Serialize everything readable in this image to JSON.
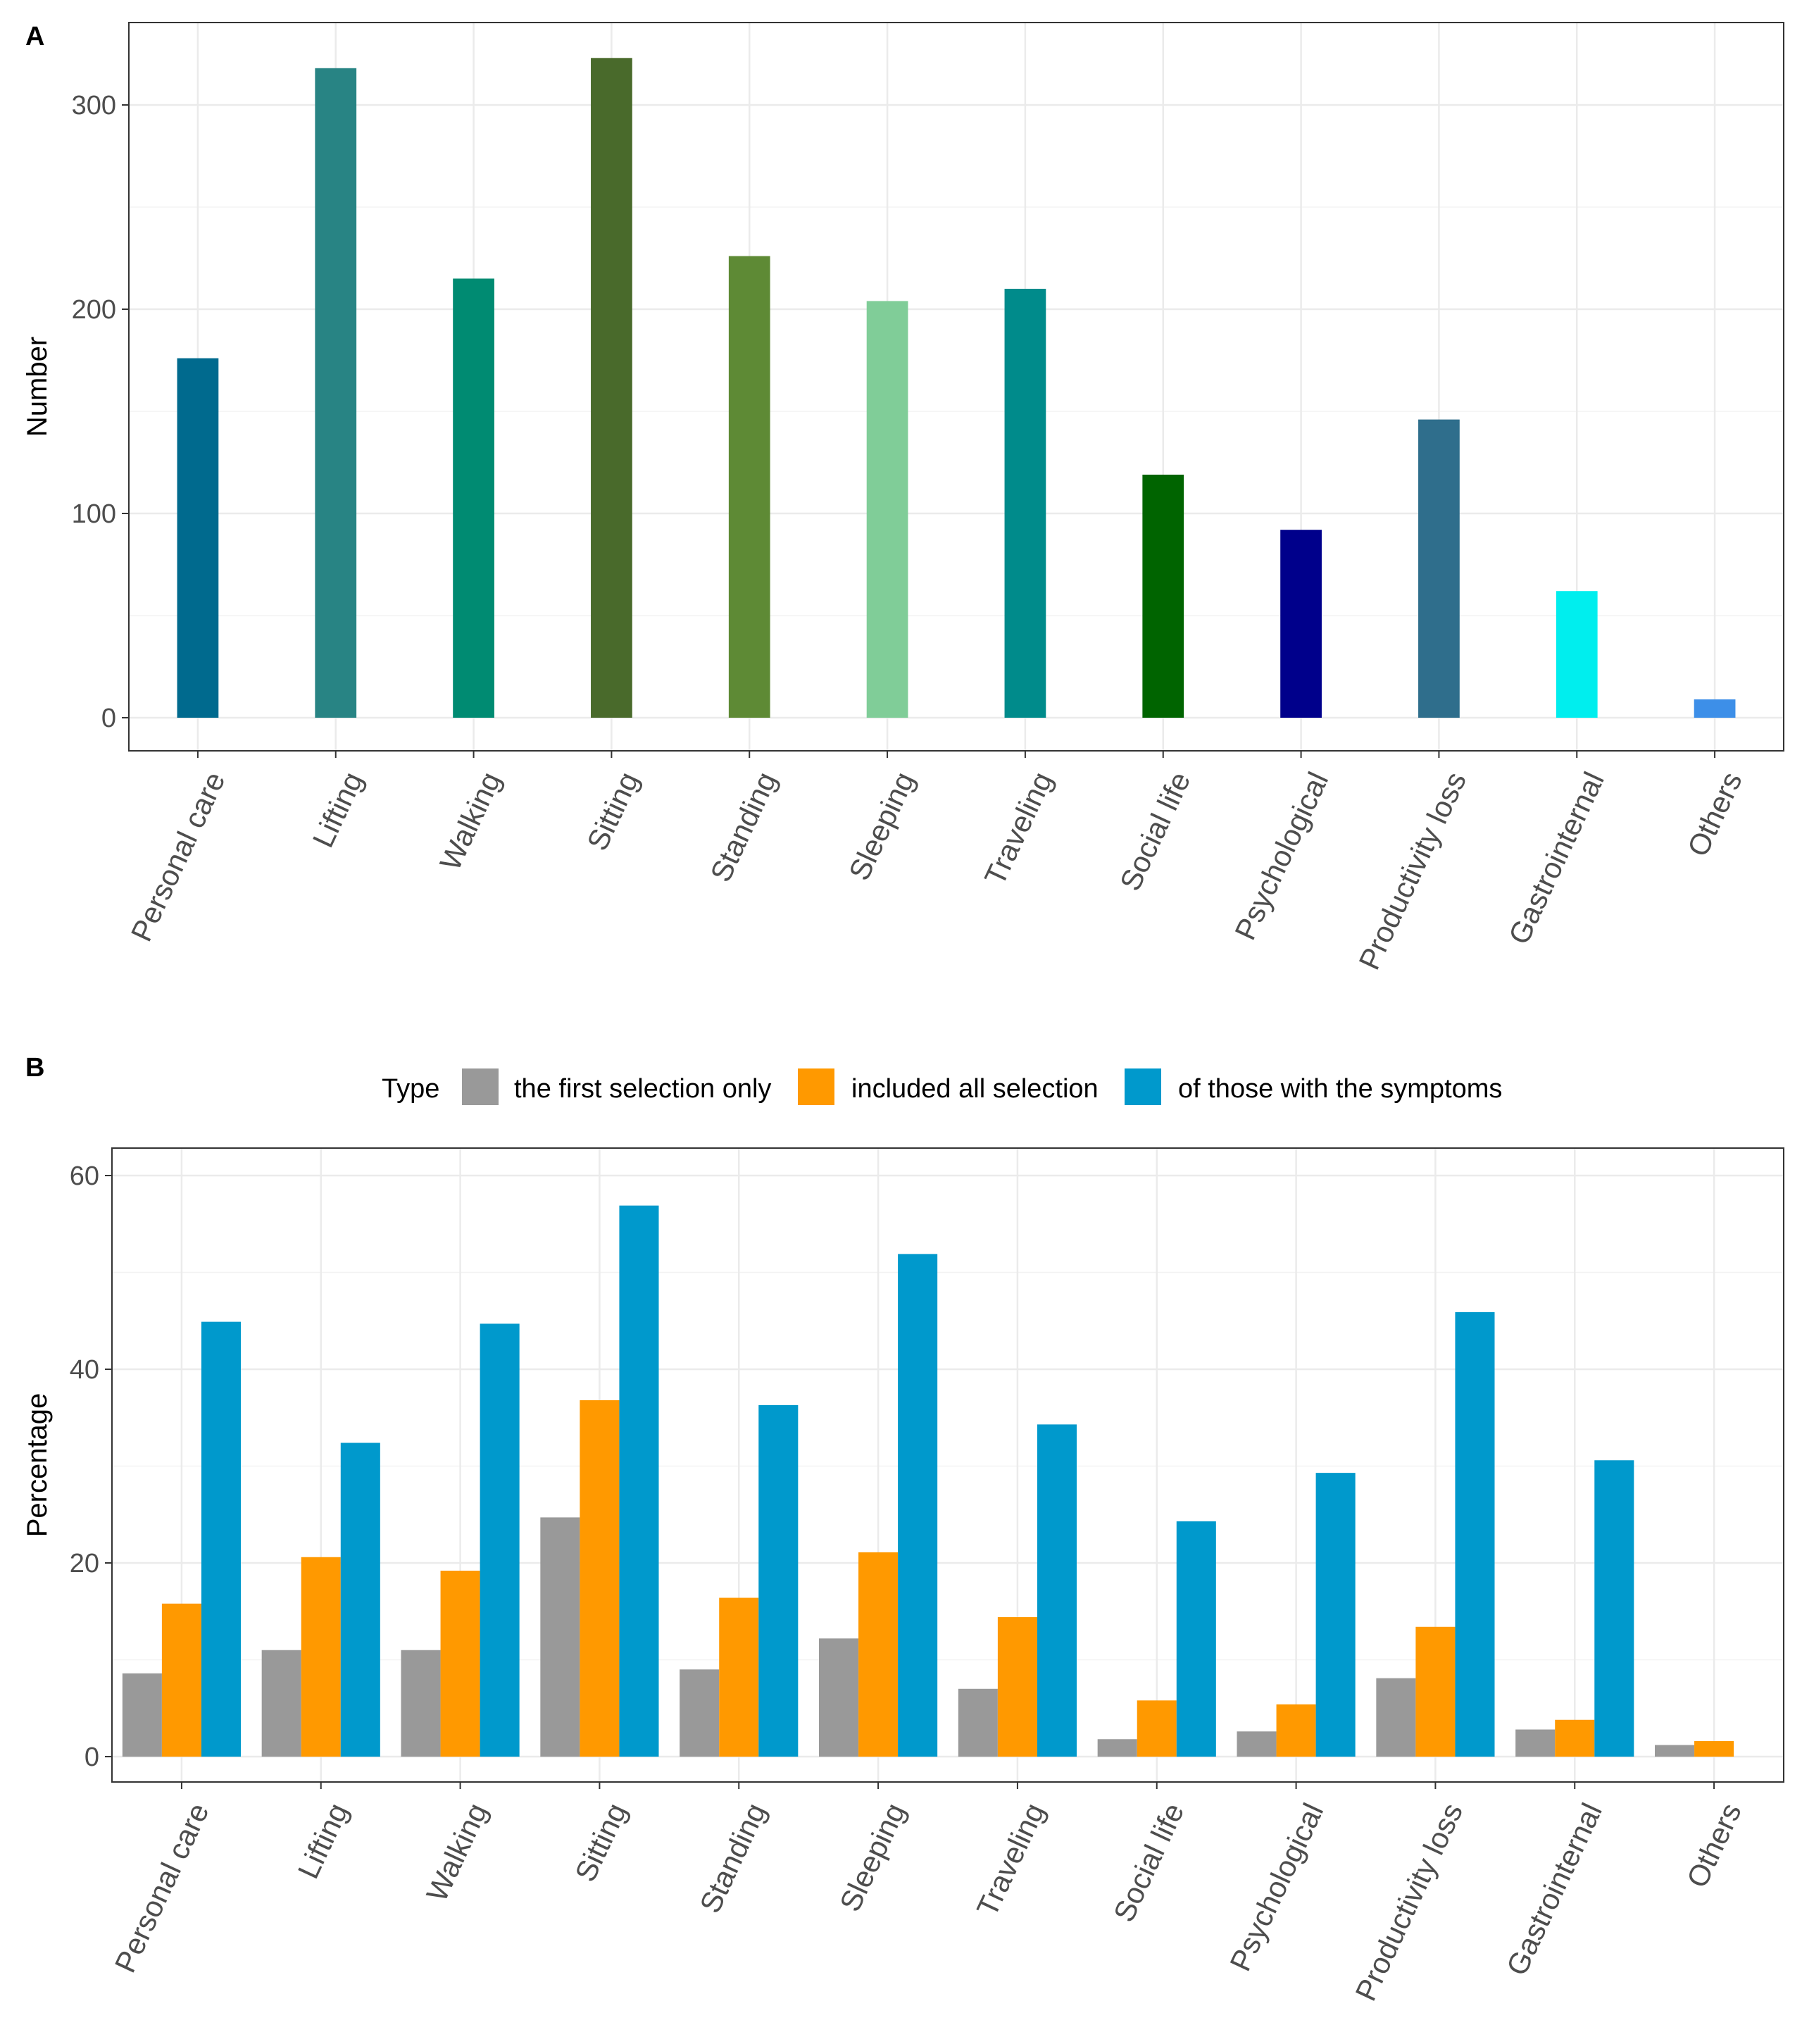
{
  "chart_data": [
    {
      "panel": "A",
      "type": "bar",
      "ylabel": "Number",
      "ylim": [
        0,
        340
      ],
      "yticks": [
        0,
        100,
        200,
        300
      ],
      "grid": true,
      "categories": [
        "Personal care",
        "Lifting",
        "Walking",
        "Sitting",
        "Standing",
        "Sleeping",
        "Traveling",
        "Social life",
        "Psychological",
        "Productivity loss",
        "Gastrointernal",
        "Others"
      ],
      "values": [
        176,
        318,
        215,
        323,
        226,
        204,
        210,
        119,
        92,
        146,
        62,
        9
      ],
      "colors": [
        "#006A8E",
        "#288484",
        "#008B72",
        "#496A2B",
        "#5E8A35",
        "#80CD98",
        "#008B8B",
        "#006400",
        "#00008B",
        "#2F6E8C",
        "#00EEEE",
        "#3D8FE8"
      ]
    },
    {
      "panel": "B",
      "type": "bar",
      "ylabel": "Percentage",
      "ylim": [
        0,
        63
      ],
      "yticks": [
        0,
        20,
        40,
        60
      ],
      "grid": true,
      "legend": {
        "title": "Type",
        "position": "top",
        "entries": [
          "the first selection only",
          "included all selection",
          "of those with the symptoms"
        ]
      },
      "categories": [
        "Personal care",
        "Lifting",
        "Walking",
        "Sitting",
        "Standing",
        "Sleeping",
        "Traveling",
        "Social life",
        "Psychological",
        "Productivity loss",
        "Gastrointernal",
        "Others"
      ],
      "series": [
        {
          "name": "the first selection only",
          "color": "#999999",
          "values": [
            8.6,
            11.0,
            11.0,
            24.7,
            9.0,
            12.2,
            7.0,
            1.8,
            2.6,
            8.1,
            2.8,
            1.2
          ]
        },
        {
          "name": "included all selection",
          "color": "#FF9900",
          "values": [
            15.8,
            20.6,
            19.2,
            36.8,
            16.4,
            21.1,
            14.4,
            5.8,
            5.4,
            13.4,
            3.8,
            1.6
          ]
        },
        {
          "name": "of those with the symptoms",
          "color": "#0099CC",
          "values": [
            44.9,
            32.4,
            44.7,
            56.9,
            36.3,
            51.9,
            34.3,
            24.3,
            29.3,
            45.9,
            30.6,
            null
          ]
        }
      ]
    }
  ]
}
